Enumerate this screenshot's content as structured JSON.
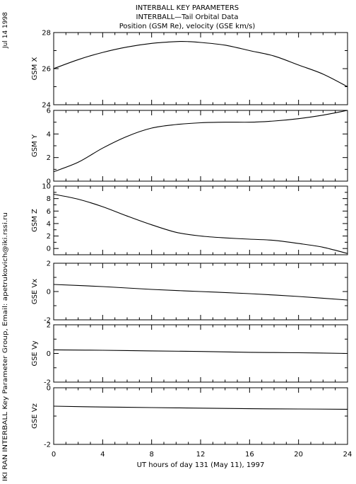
{
  "header": {
    "title": "INTERBALL KEY PARAMETERS",
    "subtitle": "INTERBALL—Tail Orbital Data",
    "units": "Position (GSM Re), velocity (GSE km/s)"
  },
  "side": {
    "date": "Jul 14 1998",
    "credit": "IKI RAN INTERBALL Key Parameter Group, Email: apetrukovich@iki.rssi.ru"
  },
  "x_axis": {
    "label": "UT hours of day 131 (May 11), 1997",
    "ticks": [
      "0",
      "4",
      "8",
      "12",
      "16",
      "20",
      "24"
    ]
  },
  "colors": {
    "line": "#000000",
    "background": "#ffffff"
  },
  "chart_data": [
    {
      "type": "line",
      "ylabel": "GSM X",
      "ylim": [
        24,
        28
      ],
      "yticks": [
        24,
        26,
        28
      ],
      "x": [
        0,
        2,
        4,
        6,
        8,
        10,
        11,
        12,
        14,
        16,
        18,
        20,
        22,
        24
      ],
      "series": [
        {
          "values": [
            26.0,
            26.5,
            26.9,
            27.2,
            27.4,
            27.5,
            27.5,
            27.45,
            27.3,
            27.0,
            26.7,
            26.2,
            25.7,
            25.0
          ]
        }
      ]
    },
    {
      "type": "line",
      "ylabel": "GSM Y",
      "ylim": [
        0,
        6
      ],
      "yticks": [
        0,
        2,
        4,
        6
      ],
      "x": [
        0,
        2,
        4,
        6,
        8,
        10,
        12,
        14,
        16,
        18,
        20,
        22,
        24
      ],
      "series": [
        {
          "values": [
            0.8,
            1.6,
            2.8,
            3.8,
            4.5,
            4.8,
            4.95,
            5.0,
            5.0,
            5.1,
            5.3,
            5.6,
            6.0
          ]
        }
      ]
    },
    {
      "type": "line",
      "ylabel": "GSM Z",
      "ylim": [
        -1,
        10
      ],
      "yticks": [
        0,
        2,
        4,
        6,
        8,
        10
      ],
      "x": [
        0,
        2,
        4,
        6,
        8,
        10,
        12,
        14,
        16,
        18,
        20,
        22,
        24
      ],
      "series": [
        {
          "values": [
            8.7,
            7.9,
            6.7,
            5.2,
            3.8,
            2.6,
            2.0,
            1.7,
            1.5,
            1.3,
            0.8,
            0.2,
            -0.8
          ]
        }
      ]
    },
    {
      "type": "line",
      "ylabel": "GSE Vx",
      "ylim": [
        -2,
        2
      ],
      "yticks": [
        -2,
        0,
        2
      ],
      "x": [
        0,
        4,
        8,
        12,
        16,
        20,
        24
      ],
      "series": [
        {
          "values": [
            0.5,
            0.35,
            0.15,
            0.0,
            -0.15,
            -0.35,
            -0.6
          ]
        }
      ]
    },
    {
      "type": "line",
      "ylabel": "GSE Vy",
      "ylim": [
        -2,
        2
      ],
      "yticks": [
        -2,
        0,
        2
      ],
      "x": [
        0,
        4,
        8,
        12,
        16,
        20,
        24
      ],
      "series": [
        {
          "values": [
            0.25,
            0.22,
            0.18,
            0.14,
            0.08,
            0.05,
            0.0
          ]
        }
      ]
    },
    {
      "type": "line",
      "ylabel": "GSE Vz",
      "ylim": [
        -2,
        0
      ],
      "yticks": [
        -2,
        0
      ],
      "x": [
        0,
        4,
        8,
        12,
        16,
        20,
        24
      ],
      "series": [
        {
          "values": [
            -0.65,
            -0.68,
            -0.7,
            -0.72,
            -0.74,
            -0.75,
            -0.76
          ]
        }
      ]
    }
  ]
}
